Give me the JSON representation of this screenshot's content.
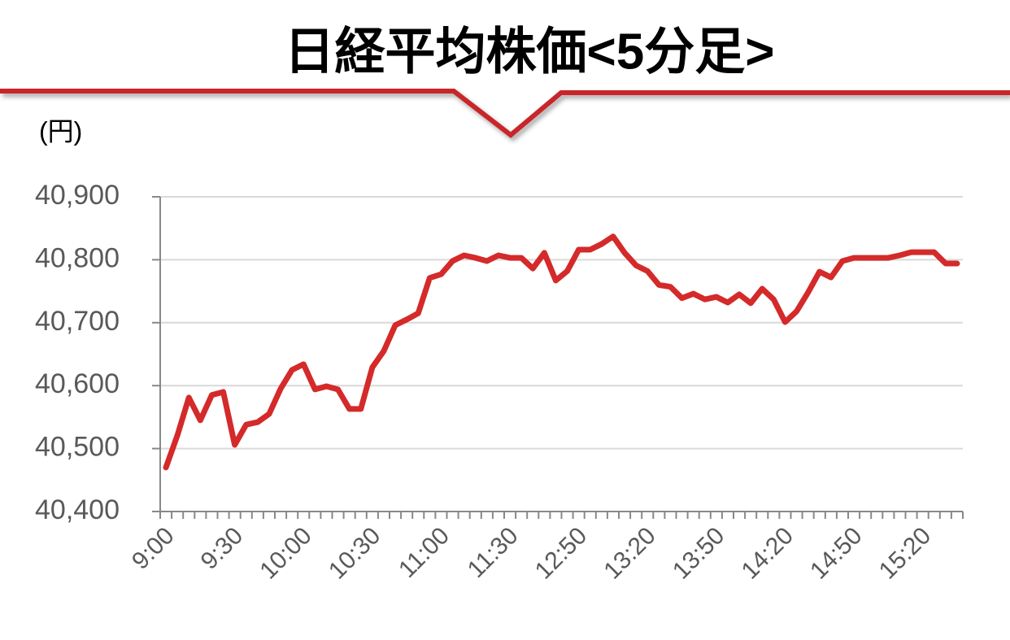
{
  "chart_data": {
    "type": "line",
    "title": "日経平均株価<5分足>",
    "y_unit": "(円)",
    "categories": [
      "9:00",
      null,
      null,
      null,
      null,
      null,
      "9:30",
      null,
      null,
      null,
      null,
      null,
      "10:00",
      null,
      null,
      null,
      null,
      null,
      "10:30",
      null,
      null,
      null,
      null,
      null,
      "11:00",
      null,
      null,
      null,
      null,
      null,
      "11:30",
      null,
      null,
      null,
      null,
      null,
      "12:50",
      null,
      null,
      null,
      null,
      null,
      "13:20",
      null,
      null,
      null,
      null,
      null,
      "13:50",
      null,
      null,
      null,
      null,
      null,
      "14:20",
      null,
      null,
      null,
      null,
      null,
      "14:50",
      null,
      null,
      null,
      null,
      null,
      "15:20",
      null,
      null,
      null
    ],
    "values": [
      40470,
      40521,
      40581,
      40545,
      40585,
      40590,
      40506,
      40538,
      40542,
      40555,
      40595,
      40625,
      40634,
      40594,
      40599,
      40594,
      40563,
      40563,
      40629,
      40655,
      40696,
      40705,
      40715,
      40771,
      40777,
      40798,
      40807,
      40803,
      40798,
      40807,
      40803,
      40803,
      40786,
      40811,
      40767,
      40782,
      40816,
      40816,
      40825,
      40837,
      40811,
      40791,
      40782,
      40760,
      40757,
      40739,
      40746,
      40737,
      40741,
      40732,
      40745,
      40731,
      40754,
      40737,
      40701,
      40718,
      40748,
      40781,
      40772,
      40798,
      40803,
      40803,
      40803,
      40803,
      40807,
      40812,
      40812,
      40812,
      40794,
      40794
    ],
    "color": "#d42a2a",
    "ylim": [
      40400,
      40900
    ],
    "yticks": [
      {
        "value": 40400,
        "label": "40,400"
      },
      {
        "value": 40500,
        "label": "40,500"
      },
      {
        "value": 40600,
        "label": "40,600"
      },
      {
        "value": 40700,
        "label": "40,700"
      },
      {
        "value": 40800,
        "label": "40,800"
      },
      {
        "value": 40900,
        "label": "40,900"
      }
    ],
    "grid": true
  }
}
